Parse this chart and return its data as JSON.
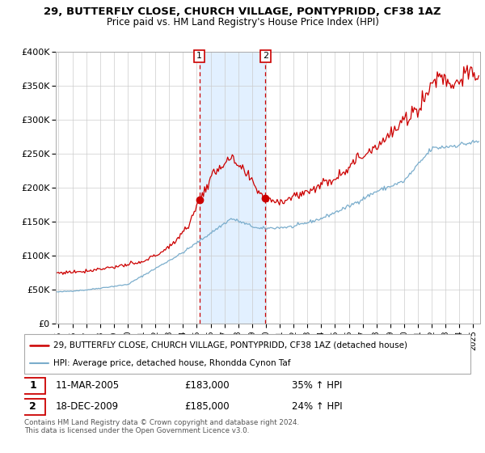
{
  "title": "29, BUTTERFLY CLOSE, CHURCH VILLAGE, PONTYPRIDD, CF38 1AZ",
  "subtitle": "Price paid vs. HM Land Registry's House Price Index (HPI)",
  "ylim": [
    0,
    400000
  ],
  "yticks": [
    0,
    50000,
    100000,
    150000,
    200000,
    250000,
    300000,
    350000,
    400000
  ],
  "ytick_labels": [
    "£0",
    "£50K",
    "£100K",
    "£150K",
    "£200K",
    "£250K",
    "£300K",
    "£350K",
    "£400K"
  ],
  "xlim_start": 1994.8,
  "xlim_end": 2025.5,
  "sale1_x": 2005.19,
  "sale1_y": 183000,
  "sale2_x": 2009.96,
  "sale2_y": 185000,
  "sale1_date": "11-MAR-2005",
  "sale1_price": "£183,000",
  "sale1_hpi": "35% ↑ HPI",
  "sale2_date": "18-DEC-2009",
  "sale2_price": "£185,000",
  "sale2_hpi": "24% ↑ HPI",
  "line_color_red": "#cc0000",
  "line_color_blue": "#7aadcc",
  "vline_color": "#cc0000",
  "shade_color": "#ddeeff",
  "grid_color": "#cccccc",
  "legend_line1": "29, BUTTERFLY CLOSE, CHURCH VILLAGE, PONTYPRIDD, CF38 1AZ (detached house)",
  "legend_line2": "HPI: Average price, detached house, Rhondda Cynon Taf",
  "footer": "Contains HM Land Registry data © Crown copyright and database right 2024.\nThis data is licensed under the Open Government Licence v3.0.",
  "hpi_anchors_x": [
    1995.0,
    1997.0,
    2000.0,
    2004.0,
    2007.5,
    2009.5,
    2012.0,
    2014.0,
    2016.0,
    2018.0,
    2020.0,
    2022.0,
    2023.5,
    2025.3
  ],
  "hpi_anchors_y": [
    47000,
    50000,
    58000,
    105000,
    155000,
    140000,
    143000,
    155000,
    173000,
    195000,
    210000,
    258000,
    262000,
    268000
  ],
  "prop_anchors_x": [
    1995.0,
    1997.0,
    1999.0,
    2001.0,
    2003.0,
    2004.5,
    2005.19,
    2006.5,
    2007.5,
    2008.5,
    2009.5,
    2009.96,
    2011.0,
    2013.0,
    2015.0,
    2017.0,
    2019.0,
    2021.0,
    2022.5,
    2023.5,
    2024.5,
    2025.3
  ],
  "prop_anchors_y": [
    75000,
    78000,
    84000,
    90000,
    112000,
    148000,
    183000,
    230000,
    242000,
    222000,
    195000,
    185000,
    180000,
    195000,
    215000,
    248000,
    278000,
    318000,
    368000,
    352000,
    368000,
    365000
  ]
}
